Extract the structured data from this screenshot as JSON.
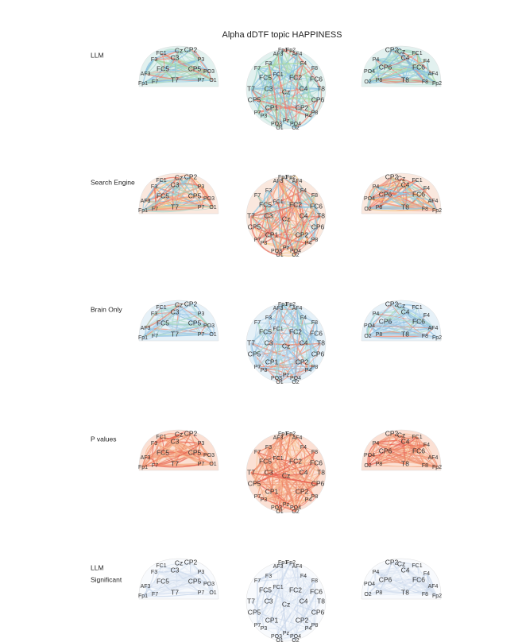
{
  "title": "Alpha dDTF topic HAPPINESS",
  "rows": [
    [
      "LLM"
    ],
    [
      "Search Engine"
    ],
    [
      "Brain Only"
    ],
    [
      "P values"
    ],
    [
      "LLM",
      "Significant"
    ]
  ],
  "views": {
    "left": [
      "FC1",
      "Cz",
      "CP2",
      "F3",
      "C3",
      "P3",
      "FC5",
      "CP5",
      "AF3",
      "T7",
      "Fp1",
      "F7",
      "P7",
      "PO3",
      "O1"
    ],
    "top": [
      "AF3",
      "Fp1",
      "Fp2",
      "AF4",
      "F3",
      "F4",
      "F7",
      "F8",
      "FC5",
      "FC1",
      "FC2",
      "FC6",
      "T7",
      "C3",
      "Cz",
      "C4",
      "T8",
      "CP5",
      "CP1",
      "CP2",
      "CP6",
      "P7",
      "P3",
      "Pz",
      "P4",
      "P8",
      "PO3",
      "PO4",
      "O1",
      "O2"
    ],
    "right": [
      "CP2",
      "Cz",
      "FC1",
      "P4",
      "CP6",
      "C4",
      "FC6",
      "F4",
      "PO4",
      "O2",
      "T8",
      "AF4",
      "F8",
      "Fp2",
      "P8"
    ]
  }
}
